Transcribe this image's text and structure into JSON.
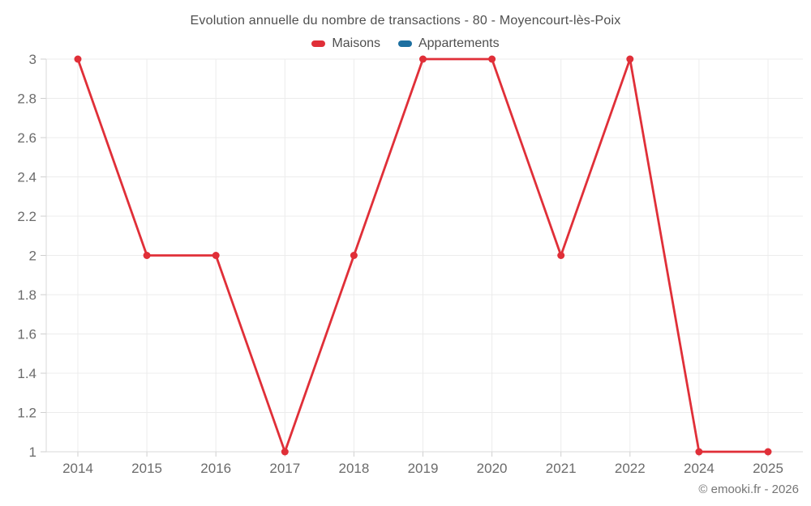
{
  "title": "Evolution annuelle du nombre de transactions - 80 - Moyencourt-lès-Poix",
  "legend": {
    "items": [
      {
        "label": "Maisons",
        "color": "#e02f38"
      },
      {
        "label": "Appartements",
        "color": "#1d6fa0"
      }
    ]
  },
  "footer": {
    "copyright": "© emooki.fr - 2026"
  },
  "chart_data": {
    "type": "line",
    "title": "Evolution annuelle du nombre de transactions - 80 - Moyencourt-lès-Poix",
    "categories": [
      "2014",
      "2015",
      "2016",
      "2017",
      "2018",
      "2019",
      "2020",
      "2021",
      "2022",
      "2024",
      "2025"
    ],
    "series": [
      {
        "name": "Maisons",
        "color": "#e02f38",
        "values": [
          3,
          2,
          2,
          1,
          2,
          3,
          3,
          2,
          3,
          1,
          1
        ]
      },
      {
        "name": "Appartements",
        "color": "#1d6fa0",
        "values": []
      }
    ],
    "xlabel": "",
    "ylabel": "",
    "ylim": [
      1,
      3
    ],
    "ytick_step": 0.2,
    "yticks": [
      "1",
      "1.2",
      "1.4",
      "1.6",
      "1.8",
      "2",
      "2.2",
      "2.4",
      "2.6",
      "2.8",
      "3"
    ],
    "grid": true,
    "legend_position": "top"
  },
  "style": {
    "background": "#ffffff",
    "grid_color": "#ececec",
    "axis_color": "#d9d9d9",
    "tick_color": "#cfcfcf",
    "axis_label_color": "#6b6b6b",
    "title_color": "#4f4f4f",
    "copyright_color": "#757575"
  }
}
